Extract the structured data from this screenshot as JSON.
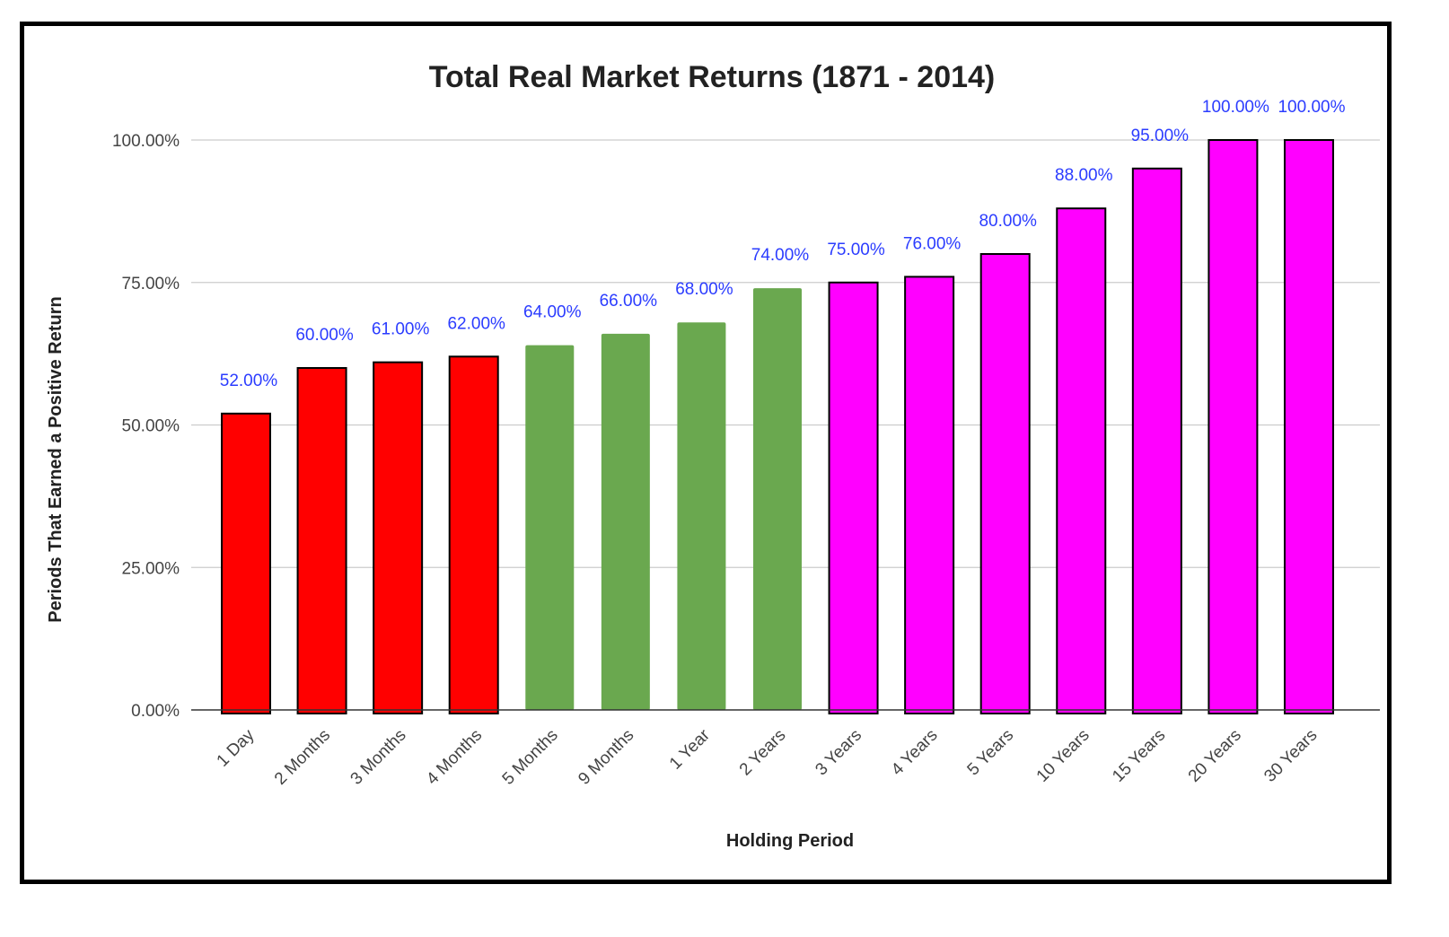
{
  "chart_data": {
    "type": "bar",
    "title": "Total Real Market Returns (1871 - 2014)",
    "xlabel": "Holding Period",
    "ylabel": "Periods That Earned a Positive Return",
    "ylim": [
      0,
      100
    ],
    "yticks": [
      "0.00%",
      "25.00%",
      "50.00%",
      "75.00%",
      "100.00%"
    ],
    "ytick_values": [
      0,
      25,
      50,
      75,
      100
    ],
    "grid": true,
    "categories": [
      "1 Day",
      "2 Months",
      "3 Months",
      "4 Months",
      "5 Months",
      "9 Months",
      "1 Year",
      "2 Years",
      "3 Years",
      "4 Years",
      "5 Years",
      "10 Years",
      "15 Years",
      "20 Years",
      "30 Years"
    ],
    "values": [
      52,
      60,
      61,
      62,
      64,
      66,
      68,
      74,
      75,
      76,
      80,
      88,
      95,
      100,
      100
    ],
    "data_labels": [
      "52.00%",
      "60.00%",
      "61.00%",
      "62.00%",
      "64.00%",
      "66.00%",
      "68.00%",
      "74.00%",
      "75.00%",
      "76.00%",
      "80.00%",
      "88.00%",
      "95.00%",
      "100.00%",
      "100.00%"
    ],
    "bar_colors": [
      "#ff0000",
      "#ff0000",
      "#ff0000",
      "#ff0000",
      "#6aa84f",
      "#6aa84f",
      "#6aa84f",
      "#6aa84f",
      "#ff00ff",
      "#ff00ff",
      "#ff00ff",
      "#ff00ff",
      "#ff00ff",
      "#ff00ff",
      "#ff00ff"
    ],
    "bar_outlined": [
      true,
      true,
      true,
      true,
      false,
      false,
      false,
      false,
      true,
      true,
      true,
      true,
      true,
      true,
      true
    ],
    "data_label_color": "#2b3cff",
    "grid_color": "#cccccc"
  }
}
